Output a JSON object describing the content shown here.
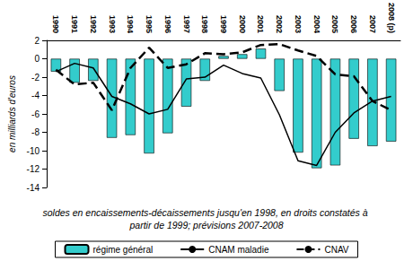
{
  "chart_data": {
    "type": "bar",
    "subtitle": "soldes en encaissements-décaissements jusqu'en 1998, en droits constatés à partir de 1999; prévisions 2007-2008",
    "y_label": "en milliards d'euros",
    "categories": [
      "1990",
      "1991",
      "1992",
      "1993",
      "1994",
      "1995",
      "1996",
      "1997",
      "1998",
      "1999",
      "2000",
      "2001",
      "2002",
      "2003",
      "2004",
      "2005",
      "2006",
      "2007",
      "2008 (p)"
    ],
    "series": [
      {
        "name": "régime général",
        "type": "bar",
        "color": "#33cccc",
        "values": [
          -1.4,
          -2.6,
          -2.4,
          -8.6,
          -8.3,
          -10.3,
          -8.1,
          -5.2,
          -2.4,
          0.3,
          0.5,
          1.1,
          -3.5,
          -10.2,
          -11.9,
          -11.6,
          -8.7,
          -9.5,
          -9.0
        ]
      },
      {
        "name": "CNAM maladie",
        "type": "line",
        "color": "#000000",
        "line_style": "solid",
        "values": [
          -1.4,
          -0.5,
          -1.0,
          -4.1,
          -4.9,
          -6.0,
          -5.5,
          -2.2,
          -2.0,
          -0.7,
          -1.6,
          -2.1,
          -6.1,
          -11.1,
          -11.6,
          -8.0,
          -5.9,
          -4.6,
          -4.1
        ]
      },
      {
        "name": "CNAV",
        "type": "line",
        "color": "#000000",
        "line_style": "dashed",
        "values": [
          -1.2,
          -2.8,
          -2.6,
          -5.6,
          -1.0,
          1.2,
          -1.0,
          -0.6,
          0.6,
          0.5,
          0.7,
          1.5,
          1.6,
          0.9,
          0.3,
          -1.7,
          -1.9,
          -4.6,
          -5.6
        ]
      }
    ],
    "ylim": [
      -14,
      2
    ],
    "yticks": [
      -14,
      -12,
      -10,
      -8,
      -6,
      -4,
      -2,
      0,
      2
    ],
    "grid": false,
    "legend": "bottom"
  }
}
